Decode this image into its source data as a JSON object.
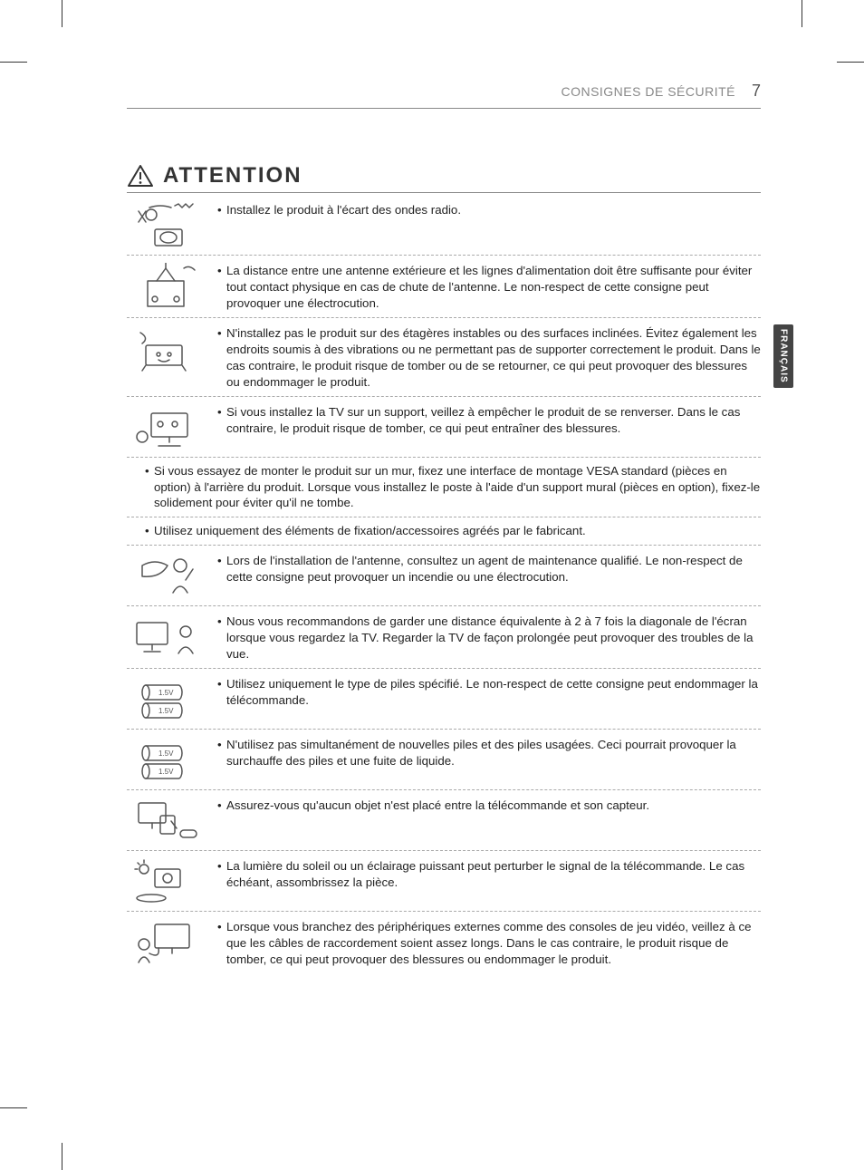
{
  "header": {
    "section": "CONSIGNES DE SÉCURITÉ",
    "page": "7"
  },
  "sideTab": "FRANÇAIS",
  "attention": "ATTENTION",
  "rows": [
    {
      "kind": "icon",
      "icon": "radio",
      "lines": [
        "Installez le produit à l'écart des ondes radio."
      ]
    },
    {
      "kind": "icon",
      "icon": "antenna",
      "lines": [
        "La distance entre une antenne extérieure et les lignes d'alimentation doit être suffisante pour éviter tout contact physique en cas de chute de l'antenne. Le non-respect de cette consigne peut provoquer une électrocution."
      ]
    },
    {
      "kind": "icon",
      "icon": "shelf",
      "lines": [
        "N'installez pas le produit sur des étagères instables ou des surfaces inclinées. Évitez également les endroits soumis à des vibrations ou ne permettant pas de supporter correctement le produit. Dans le cas contraire, le produit risque de tomber ou de se retourner, ce qui peut provoquer des blessures ou endommager le produit."
      ]
    },
    {
      "kind": "icon",
      "icon": "stand",
      "lines": [
        "Si vous installez la TV sur un support, veillez à empêcher le produit de se renverser. Dans le cas contraire, le produit risque de tomber, ce qui peut entraîner des blessures."
      ]
    },
    {
      "kind": "text",
      "lines": [
        "Si vous essayez de monter le produit sur un mur, fixez une interface de montage VESA standard (pièces en option) à l'arrière du produit. Lorsque vous installez le poste à l'aide d'un support mural (pièces en option), fixez-le solidement pour éviter qu'il ne tombe."
      ]
    },
    {
      "kind": "text",
      "lines": [
        "Utilisez uniquement des éléments de fixation/accessoires agréés par le fabricant."
      ]
    },
    {
      "kind": "icon",
      "icon": "installer",
      "lines": [
        "Lors de l'installation de l'antenne, consultez un agent de maintenance qualifié. Le non-respect de cette consigne peut provoquer un incendie ou une électrocution."
      ]
    },
    {
      "kind": "icon",
      "icon": "distance",
      "lines": [
        "Nous vous recommandons de garder une distance équivalente à 2 à 7 fois la diagonale de l'écran lorsque vous regardez la TV. Regarder la TV de façon prolongée peut provoquer des troubles de la vue."
      ]
    },
    {
      "kind": "icon",
      "icon": "batt1",
      "lines": [
        "Utilisez uniquement le type de piles spécifié. Le non-respect de cette consigne peut endommager la télécommande."
      ]
    },
    {
      "kind": "icon",
      "icon": "batt2",
      "lines": [
        "N'utilisez pas simultanément de nouvelles piles et des piles usagées. Ceci pourrait provoquer la surchauffe des piles et une fuite de liquide."
      ]
    },
    {
      "kind": "icon",
      "icon": "remote",
      "lines": [
        "Assurez-vous qu'aucun objet n'est placé entre la télécommande et son capteur."
      ]
    },
    {
      "kind": "icon",
      "icon": "sunlight",
      "lines": [
        "La lumière du soleil ou un éclairage puissant peut perturber le signal de la télécommande. Le cas échéant, assombrissez la pièce."
      ]
    },
    {
      "kind": "icon",
      "icon": "console",
      "lines": [
        "Lorsque vous branchez des périphériques externes comme des consoles de jeu vidéo, veillez à ce que les câbles de raccordement soient assez longs. Dans le cas contraire, le produit risque de tomber, ce qui peut provoquer des blessures ou endommager le produit."
      ]
    }
  ],
  "style": {
    "text_color": "#222222",
    "muted_color": "#888888",
    "border_color": "#888888",
    "dash_color": "#aaaaaa",
    "body_fontsize": 13.3,
    "icon_stroke": "#555555"
  }
}
